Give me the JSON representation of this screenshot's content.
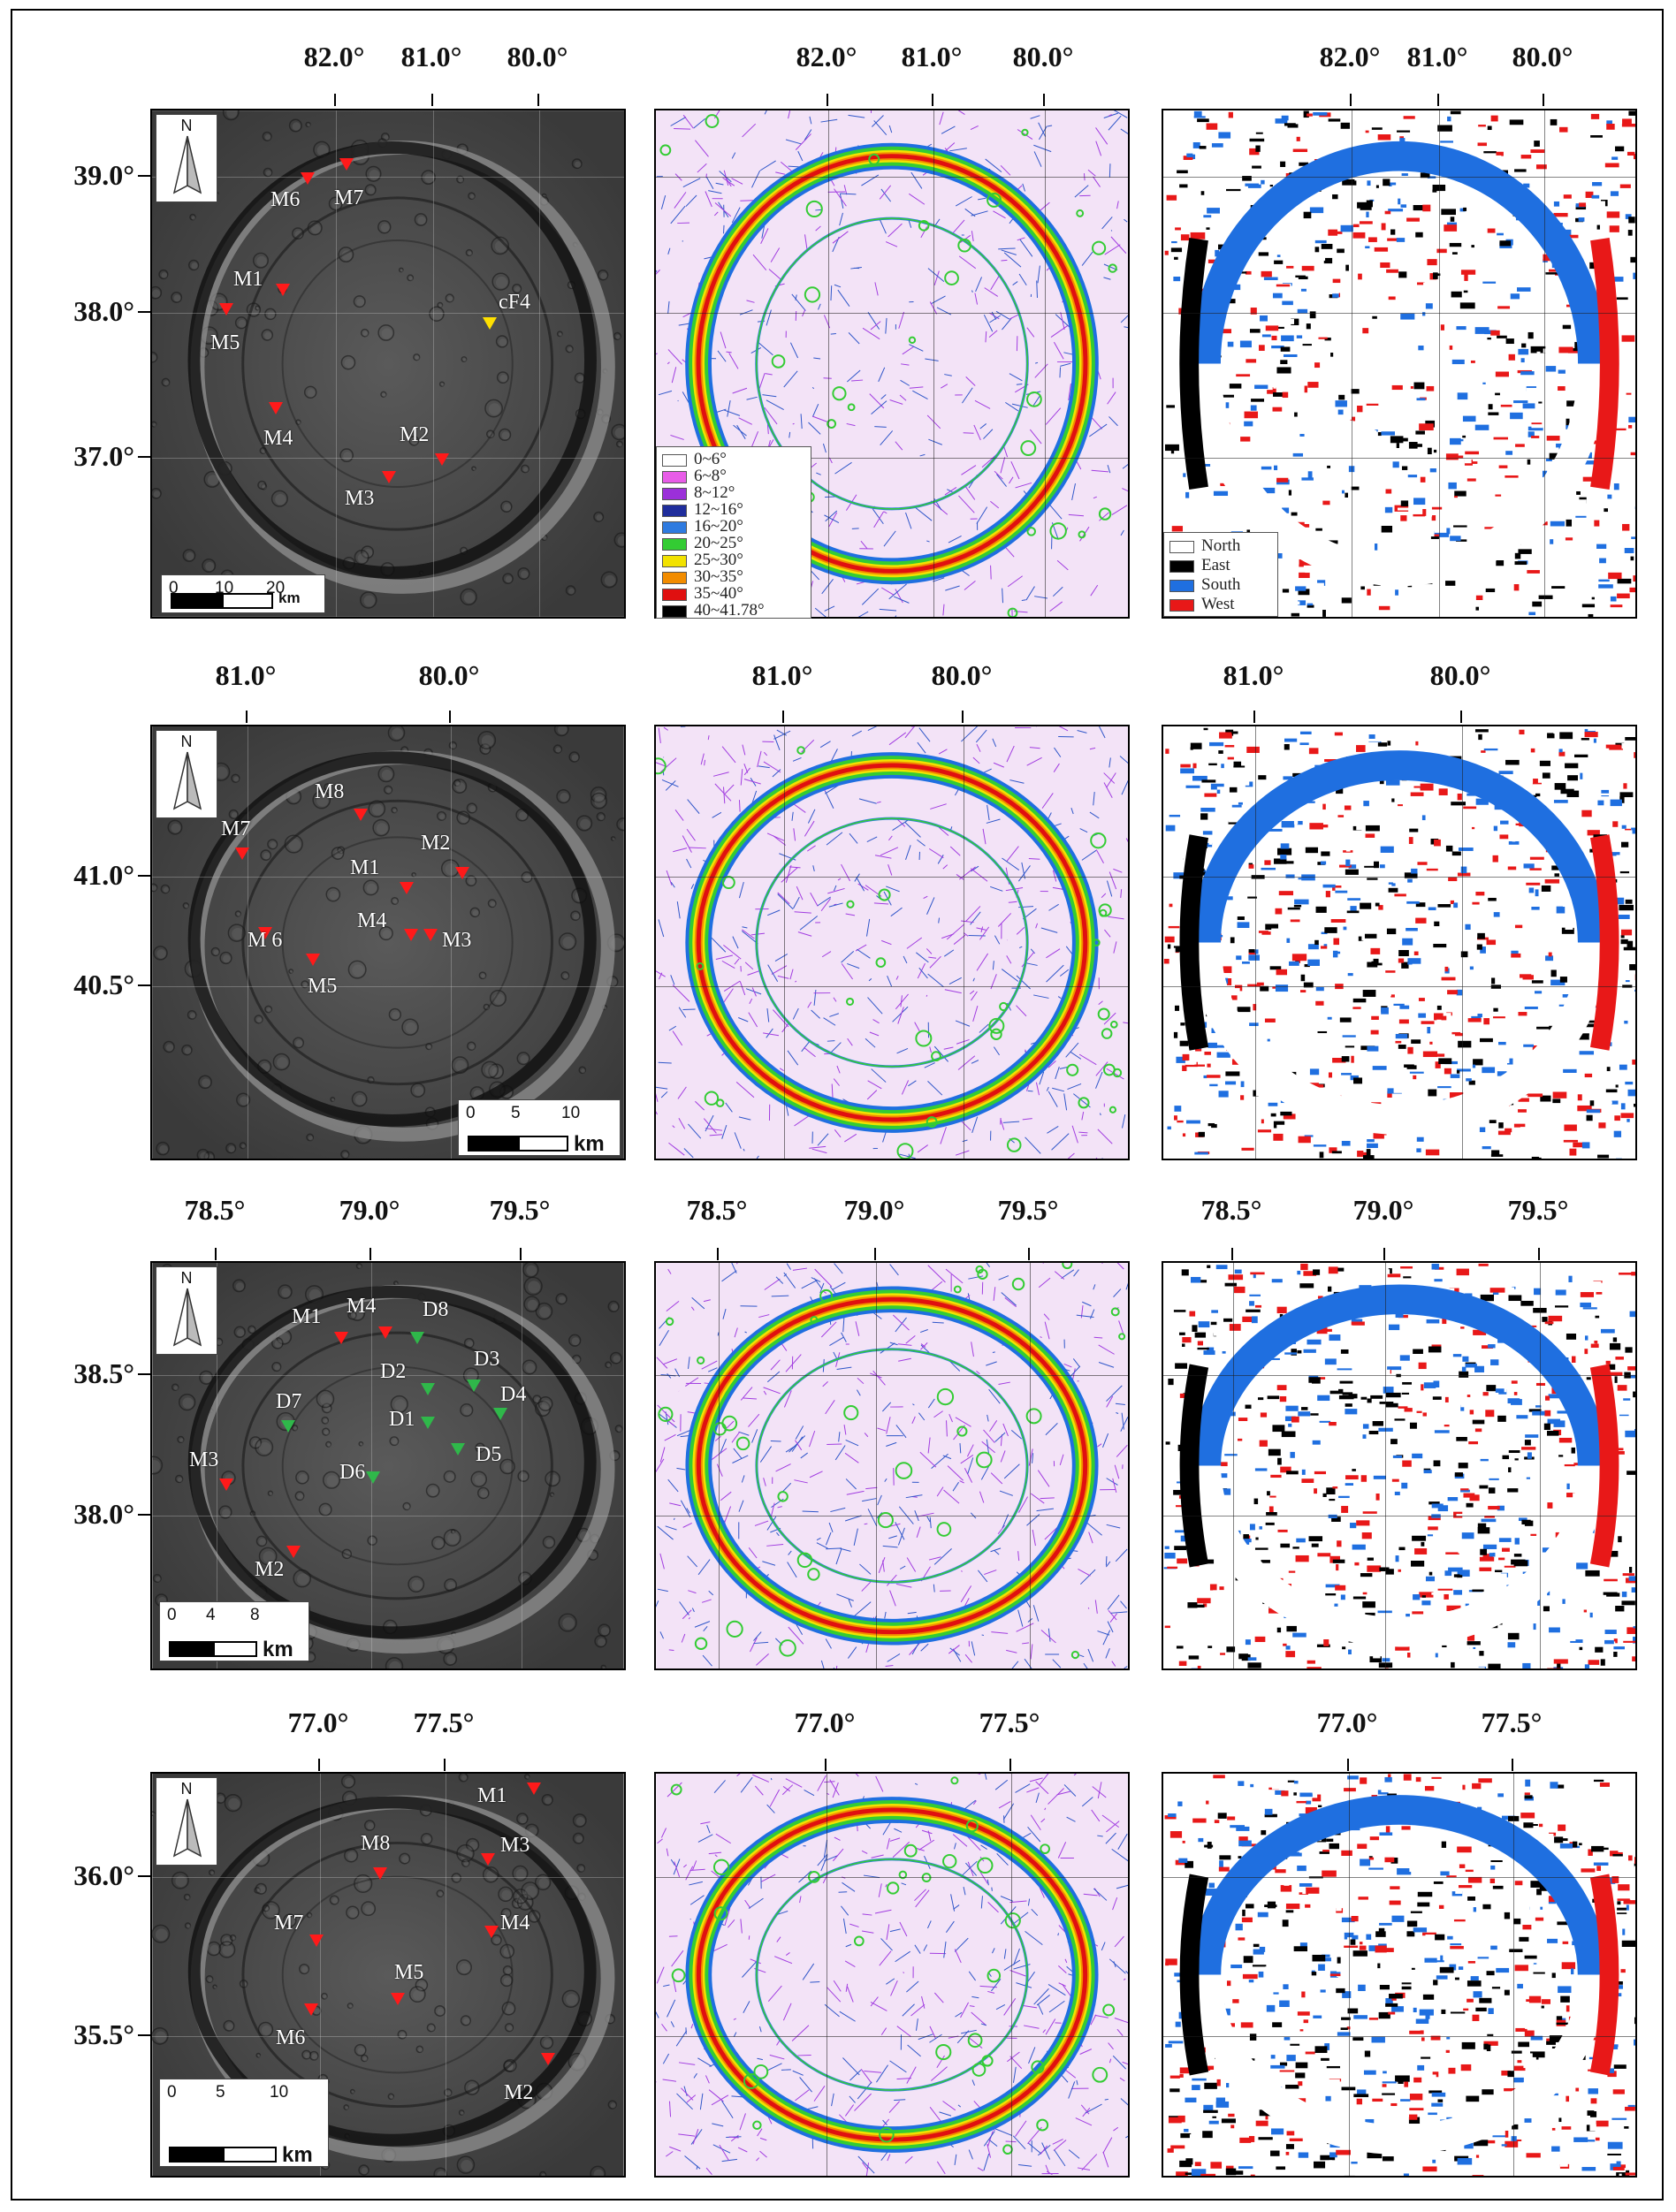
{
  "rows": [
    {
      "top_labels": [
        "82.0°",
        "81.0°",
        "80.0°"
      ],
      "left_labels": [
        "39.0°",
        "38.0°",
        "37.0°"
      ],
      "markers": [
        {
          "label": "M6",
          "color": "red"
        },
        {
          "label": "M7",
          "color": "red"
        },
        {
          "label": "M1",
          "color": "red"
        },
        {
          "label": "M5",
          "color": "red"
        },
        {
          "label": "cF4",
          "color": "yellow"
        },
        {
          "label": "M4",
          "color": "red"
        },
        {
          "label": "M2",
          "color": "red"
        },
        {
          "label": "M3",
          "color": "red"
        }
      ],
      "scale": {
        "ticks": [
          "0",
          "10",
          "20"
        ],
        "unit": "km"
      }
    },
    {
      "top_labels": [
        "81.0°",
        "80.0°"
      ],
      "left_labels": [
        "41.0°",
        "40.5°"
      ],
      "markers": [
        {
          "label": "M8",
          "color": "red"
        },
        {
          "label": "M7",
          "color": "red"
        },
        {
          "label": "M2",
          "color": "red"
        },
        {
          "label": "M1",
          "color": "red"
        },
        {
          "label": "M 6",
          "color": "red"
        },
        {
          "label": "M4",
          "color": "red"
        },
        {
          "label": "M3",
          "color": "red"
        },
        {
          "label": "M5",
          "color": "red"
        }
      ],
      "scale": {
        "ticks": [
          "0",
          "5",
          "10"
        ],
        "unit": "km"
      }
    },
    {
      "top_labels": [
        "78.5°",
        "79.0°",
        "79.5°"
      ],
      "left_labels": [
        "38.5°",
        "38.0°"
      ],
      "markers": [
        {
          "label": "M1",
          "color": "red"
        },
        {
          "label": "M4",
          "color": "red"
        },
        {
          "label": "D8",
          "color": "green"
        },
        {
          "label": "D3",
          "color": "green"
        },
        {
          "label": "D2",
          "color": "green"
        },
        {
          "label": "D4",
          "color": "green"
        },
        {
          "label": "D7",
          "color": "green"
        },
        {
          "label": "D1",
          "color": "green"
        },
        {
          "label": "D5",
          "color": "green"
        },
        {
          "label": "M3",
          "color": "red"
        },
        {
          "label": "D6",
          "color": "green"
        },
        {
          "label": "M2",
          "color": "red"
        }
      ],
      "scale": {
        "ticks": [
          "0",
          "4",
          "8"
        ],
        "unit": "km"
      }
    },
    {
      "top_labels": [
        "77.0°",
        "77.5°"
      ],
      "left_labels": [
        "36.0°",
        "35.5°"
      ],
      "markers": [
        {
          "label": "M1",
          "color": "red"
        },
        {
          "label": "M8",
          "color": "red"
        },
        {
          "label": "M3",
          "color": "red"
        },
        {
          "label": "M7",
          "color": "red"
        },
        {
          "label": "M4",
          "color": "red"
        },
        {
          "label": "M5",
          "color": "red"
        },
        {
          "label": "M6",
          "color": "red"
        },
        {
          "label": "M2",
          "color": "red"
        }
      ],
      "scale": {
        "ticks": [
          "0",
          "5",
          "10"
        ],
        "unit": "km"
      }
    }
  ],
  "north_label": "N",
  "slope_legend": [
    {
      "label": "0~6°",
      "color": "#ffffff"
    },
    {
      "label": "6~8°",
      "color": "#e85ce8"
    },
    {
      "label": "8~12°",
      "color": "#9b30d9"
    },
    {
      "label": "12~16°",
      "color": "#1f2d9c"
    },
    {
      "label": "16~20°",
      "color": "#2f7be0"
    },
    {
      "label": "20~25°",
      "color": "#33cc33"
    },
    {
      "label": "25~30°",
      "color": "#f2e200"
    },
    {
      "label": "30~35°",
      "color": "#f28c00"
    },
    {
      "label": "35~40°",
      "color": "#e01010"
    },
    {
      "label": "40~41.78°",
      "color": "#000000"
    }
  ],
  "aspect_legend": [
    {
      "label": "North",
      "color": "#ffffff"
    },
    {
      "label": "East",
      "color": "#000000"
    },
    {
      "label": "South",
      "color": "#1f6fe0"
    },
    {
      "label": "West",
      "color": "#e81818"
    }
  ]
}
